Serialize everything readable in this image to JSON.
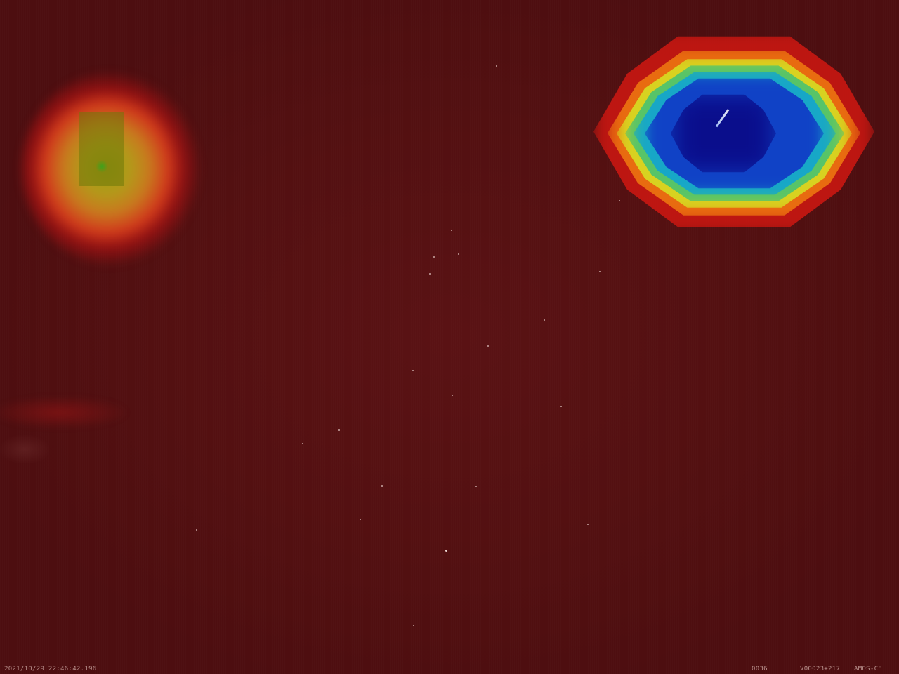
{
  "overlay": {
    "timestamp": "2021/10/29 22:46:42.196",
    "frame_number": "0036",
    "camera_id": "V00023+217",
    "station": "AMOS-CE"
  },
  "colors": {
    "background": "#530f10",
    "heat_low": "#d01812",
    "heat_mid": "#d8d220",
    "heat_high": "#0a0e8c"
  }
}
